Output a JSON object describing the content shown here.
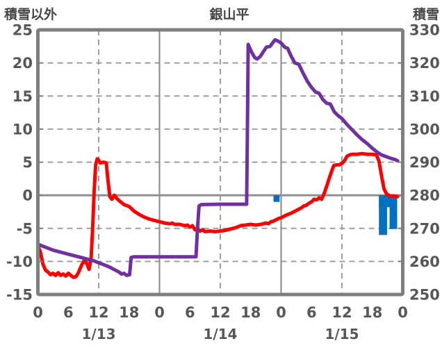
{
  "header": {
    "left_axis_title": "積雪以外",
    "chart_title": "銀山平",
    "right_axis_title": "積雪"
  },
  "colors": {
    "temperature_line": "#ff0000",
    "snow_depth_line": "#7030a0",
    "snowfall_bar": "#0070c0",
    "border": "#7f7f7f",
    "gridline": "#9e9e9e",
    "solid_line": "#8f8f8f",
    "text": "#575757"
  },
  "chart_data": {
    "type": "line",
    "title": "銀山平",
    "left_axis": {
      "title": "積雪以外",
      "min": -15,
      "max": 25,
      "step": 5,
      "ticks": [
        25,
        20,
        15,
        10,
        5,
        0,
        -5,
        -10,
        -15
      ]
    },
    "right_axis": {
      "title": "積雪",
      "min": 250,
      "max": 330,
      "step": 10,
      "ticks": [
        330,
        320,
        310,
        300,
        290,
        280,
        270,
        260,
        250
      ]
    },
    "x_axis": {
      "hours_span": 72,
      "tick_interval": 6,
      "tick_labels": [
        "0",
        "6",
        "12",
        "18",
        "0",
        "6",
        "12",
        "18",
        "0",
        "6",
        "12",
        "18",
        "0"
      ],
      "dashed_gridline_hours": [
        12,
        36,
        60
      ],
      "solid_gridline_hours": [
        24,
        48
      ],
      "date_labels": [
        {
          "label": "1/13",
          "hour": 12
        },
        {
          "label": "1/14",
          "hour": 36
        },
        {
          "label": "1/15",
          "hour": 60
        }
      ],
      "grid": "on",
      "legend": "none"
    },
    "series": [
      {
        "name": "temperature",
        "axis": "left",
        "color": "#ff0000",
        "points": [
          [
            0,
            -7.6
          ],
          [
            0.5,
            -8.6
          ],
          [
            1,
            -10.4
          ],
          [
            1.5,
            -11.3
          ],
          [
            2,
            -11.6
          ],
          [
            2.5,
            -12.0
          ],
          [
            3,
            -11.8
          ],
          [
            3.5,
            -12.1
          ],
          [
            4,
            -11.7
          ],
          [
            4.5,
            -12.1
          ],
          [
            5,
            -11.9
          ],
          [
            5.5,
            -12.2
          ],
          [
            6,
            -11.8
          ],
          [
            6.5,
            -12.1
          ],
          [
            7,
            -12.4
          ],
          [
            7.5,
            -12.3
          ],
          [
            8,
            -11.7
          ],
          [
            8.6,
            -10.6
          ],
          [
            9.2,
            -9.8
          ],
          [
            9.7,
            -10.4
          ],
          [
            10.1,
            -11.2
          ],
          [
            10.5,
            -9.5
          ],
          [
            10.8,
            -5.0
          ],
          [
            11.1,
            0.5
          ],
          [
            11.4,
            4.6
          ],
          [
            11.7,
            5.5
          ],
          [
            12.0,
            5.3
          ],
          [
            12.3,
            4.9
          ],
          [
            13.0,
            5.0
          ],
          [
            13.5,
            4.9
          ],
          [
            13.8,
            2.5
          ],
          [
            14.2,
            -0.2
          ],
          [
            14.6,
            -0.6
          ],
          [
            15.1,
            0.0
          ],
          [
            15.6,
            -0.5
          ],
          [
            16,
            -0.8
          ],
          [
            17,
            -1.4
          ],
          [
            18,
            -1.7
          ],
          [
            19,
            -2.4
          ],
          [
            20,
            -2.9
          ],
          [
            21,
            -3.3
          ],
          [
            22,
            -3.6
          ],
          [
            23,
            -3.8
          ],
          [
            24,
            -4.0
          ],
          [
            25,
            -4.2
          ],
          [
            26,
            -4.3
          ],
          [
            26.5,
            -4.2
          ],
          [
            27,
            -4.4
          ],
          [
            28,
            -4.4
          ],
          [
            29,
            -4.6
          ],
          [
            29.5,
            -4.5
          ],
          [
            30,
            -4.8
          ],
          [
            30.5,
            -4.6
          ],
          [
            31,
            -5.2
          ],
          [
            31.5,
            -5.0
          ],
          [
            32,
            -5.4
          ],
          [
            32.5,
            -5.2
          ],
          [
            33,
            -5.5
          ],
          [
            34,
            -5.4
          ],
          [
            35,
            -5.5
          ],
          [
            36,
            -5.4
          ],
          [
            37,
            -5.3
          ],
          [
            38,
            -5.1
          ],
          [
            39,
            -4.9
          ],
          [
            40,
            -4.6
          ],
          [
            41,
            -4.5
          ],
          [
            42,
            -4.4
          ],
          [
            43,
            -4.5
          ],
          [
            44,
            -4.4
          ],
          [
            45,
            -4.2
          ],
          [
            45.5,
            -4.3
          ],
          [
            46,
            -4.0
          ],
          [
            46.5,
            -3.9
          ],
          [
            47,
            -3.7
          ],
          [
            47.5,
            -3.5
          ],
          [
            48,
            -3.4
          ],
          [
            49,
            -3.0
          ],
          [
            50,
            -2.7
          ],
          [
            51,
            -2.3
          ],
          [
            52,
            -1.9
          ],
          [
            52.5,
            -1.6
          ],
          [
            53,
            -1.5
          ],
          [
            53.5,
            -1.2
          ],
          [
            54,
            -1.0
          ],
          [
            54.5,
            -0.6
          ],
          [
            55,
            -0.7
          ],
          [
            55.5,
            -0.4
          ],
          [
            56,
            -0.6
          ],
          [
            56.5,
            0.3
          ],
          [
            57,
            1.4
          ],
          [
            57.5,
            2.6
          ],
          [
            58,
            3.7
          ],
          [
            58.4,
            4.5
          ],
          [
            59,
            4.6
          ],
          [
            59.5,
            4.6
          ],
          [
            60,
            4.8
          ],
          [
            60.5,
            5.2
          ],
          [
            61,
            5.9
          ],
          [
            61.5,
            6.1
          ],
          [
            62,
            6.2
          ],
          [
            63,
            6.2
          ],
          [
            64,
            6.3
          ],
          [
            65,
            6.2
          ],
          [
            66,
            6.2
          ],
          [
            66.8,
            6.1
          ],
          [
            67.3,
            5.2
          ],
          [
            67.8,
            3.0
          ],
          [
            68.3,
            1.0
          ],
          [
            68.8,
            0.2
          ],
          [
            69.5,
            -0.1
          ],
          [
            70.2,
            -0.1
          ],
          [
            71,
            -0.2
          ]
        ]
      },
      {
        "name": "snow_depth",
        "axis": "right",
        "color": "#7030a0",
        "points": [
          [
            0,
            265.2
          ],
          [
            1,
            264.6
          ],
          [
            2,
            264.0
          ],
          [
            3,
            263.4
          ],
          [
            4,
            263.0
          ],
          [
            5,
            262.6
          ],
          [
            6,
            262.2
          ],
          [
            7,
            261.8
          ],
          [
            8,
            261.4
          ],
          [
            9,
            261.0
          ],
          [
            10,
            260.6
          ],
          [
            11,
            260.2
          ],
          [
            12,
            259.6
          ],
          [
            13,
            259.0
          ],
          [
            14,
            258.4
          ],
          [
            15,
            257.6
          ],
          [
            16,
            256.8
          ],
          [
            16.5,
            256.2
          ],
          [
            17,
            256.4
          ],
          [
            17.5,
            255.8
          ],
          [
            18.1,
            256.0
          ],
          [
            18.4,
            261.2
          ],
          [
            19,
            261.4
          ],
          [
            31.2,
            261.4
          ],
          [
            31.5,
            270.0
          ],
          [
            31.8,
            276.8
          ],
          [
            32.3,
            277.2
          ],
          [
            36,
            277.3
          ],
          [
            41.2,
            277.3
          ],
          [
            41.35,
            300.0
          ],
          [
            41.5,
            325.6
          ],
          [
            42.2,
            323.2
          ],
          [
            42.8,
            321.6
          ],
          [
            43.3,
            321.2
          ],
          [
            43.9,
            322.0
          ],
          [
            44.5,
            323.4
          ],
          [
            45.1,
            324.8
          ],
          [
            45.8,
            325.0
          ],
          [
            46.3,
            326.0
          ],
          [
            46.8,
            327.0
          ],
          [
            47.4,
            326.6
          ],
          [
            48,
            326.0
          ],
          [
            48.7,
            324.8
          ],
          [
            49.3,
            324.4
          ],
          [
            50,
            322.0
          ],
          [
            50.7,
            320.0
          ],
          [
            51.5,
            319.6
          ],
          [
            52.3,
            317.0
          ],
          [
            53.2,
            314.4
          ],
          [
            54,
            312.6
          ],
          [
            54.8,
            311.2
          ],
          [
            55.5,
            310.8
          ],
          [
            56.2,
            309.0
          ],
          [
            57,
            307.8
          ],
          [
            57.7,
            307.6
          ],
          [
            58.5,
            305.2
          ],
          [
            59.3,
            304.0
          ],
          [
            60,
            303.2
          ],
          [
            61,
            301.4
          ],
          [
            62,
            299.8
          ],
          [
            63,
            298.2
          ],
          [
            64,
            296.8
          ],
          [
            65,
            295.6
          ],
          [
            66,
            294.2
          ],
          [
            67,
            293.0
          ],
          [
            67.8,
            292.2
          ],
          [
            68.5,
            291.8
          ],
          [
            69.2,
            291.4
          ],
          [
            70,
            291.0
          ],
          [
            70.5,
            290.8
          ],
          [
            71,
            290.4
          ]
        ]
      }
    ],
    "bars": {
      "name": "snowfall_bars",
      "axis": "left",
      "color": "#0070c0",
      "note": "bars hang downward from the 0 line",
      "items": [
        {
          "from_hour": 67.3,
          "to_hour": 70.9,
          "depth": 1.8
        },
        {
          "from_hour": 46.5,
          "to_hour": 47.7,
          "depth": 1.0
        },
        {
          "from_hour": 67.3,
          "to_hour": 68.9,
          "depth": 6.0
        },
        {
          "from_hour": 69.4,
          "to_hour": 70.9,
          "depth": 5.1
        }
      ]
    }
  }
}
